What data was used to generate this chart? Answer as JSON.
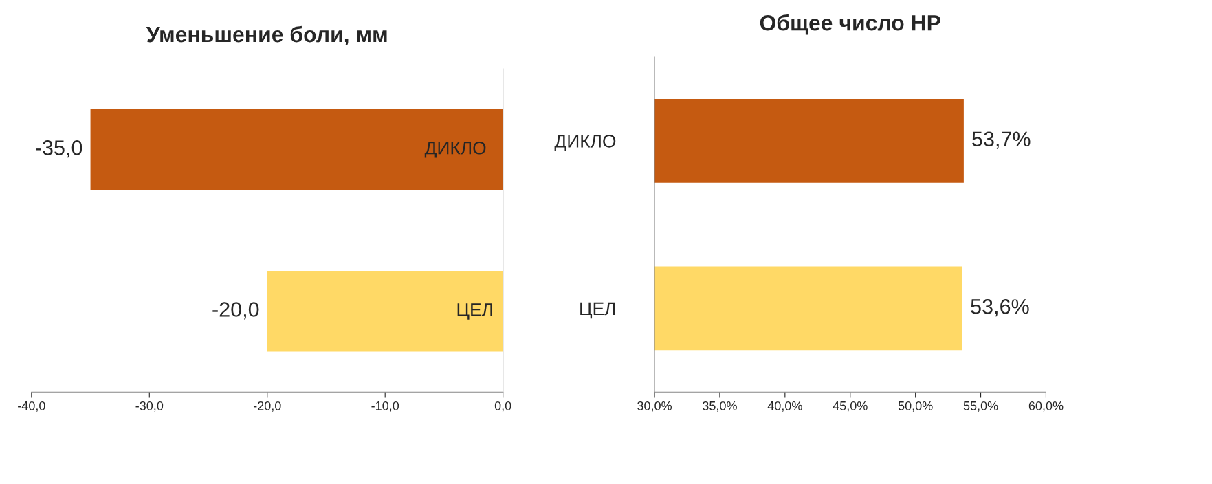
{
  "chart_data": [
    {
      "type": "bar",
      "orientation": "horizontal",
      "title": "Уменьшение боли, мм",
      "categories": [
        "ДИКЛО",
        "ЦЕЛ"
      ],
      "values": [
        -35,
        -20
      ],
      "colors": [
        "#c55a11",
        "#ffd966"
      ],
      "xlim": [
        -40,
        0
      ],
      "xticks": [
        {
          "value": -40,
          "label": "-40,0"
        },
        {
          "value": -30,
          "label": "-30,0"
        },
        {
          "value": -20,
          "label": "-20,0"
        },
        {
          "value": -10,
          "label": "-10,0"
        },
        {
          "value": 0,
          "label": "0,0"
        }
      ],
      "value_labels": [
        "-35,0",
        "-20,0"
      ],
      "tick_labels": "x",
      "grid": false,
      "legend": false
    },
    {
      "type": "bar",
      "orientation": "horizontal",
      "title": "Общее число НР",
      "categories": [
        "ДИКЛО",
        "ЦЕЛ"
      ],
      "values": [
        53.7,
        53.6
      ],
      "colors": [
        "#c55a11",
        "#ffd966"
      ],
      "xlim": [
        30,
        60
      ],
      "xticks": [
        {
          "value": 30,
          "label": "30,0%"
        },
        {
          "value": 35,
          "label": "35,0%"
        },
        {
          "value": 40,
          "label": "40,0%"
        },
        {
          "value": 45,
          "label": "45,0%"
        },
        {
          "value": 50,
          "label": "50,0%"
        },
        {
          "value": 55,
          "label": "55,0%"
        },
        {
          "value": 60,
          "label": "60,0%"
        }
      ],
      "value_labels": [
        "53,7%",
        "53,6%"
      ],
      "grid": false,
      "legend": false
    }
  ]
}
